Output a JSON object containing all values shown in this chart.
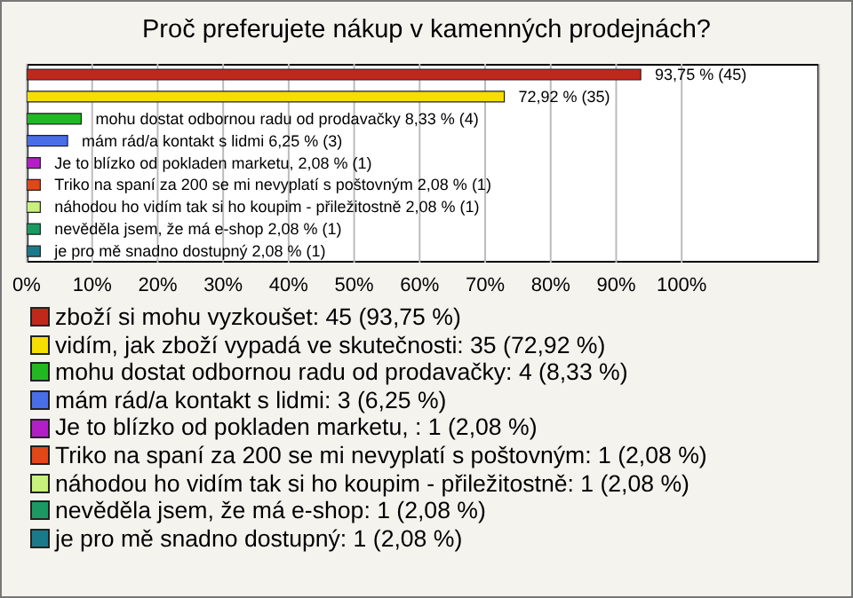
{
  "chart_data": {
    "type": "bar",
    "title": "Proč preferujete nákup v kamenných prodejnách?",
    "orientation": "horizontal",
    "stacked": true,
    "categories": [
      null,
      null,
      null,
      null,
      null,
      null,
      null,
      null,
      null
    ],
    "xlim": [
      0,
      121
    ],
    "xticks": [
      {
        "value": 0,
        "label": "0%"
      },
      {
        "value": 10,
        "label": "10%"
      },
      {
        "value": 20,
        "label": "20%"
      },
      {
        "value": 30,
        "label": "30%"
      },
      {
        "value": 40,
        "label": "40%"
      },
      {
        "value": 50,
        "label": "50%"
      },
      {
        "value": 60,
        "label": "60%"
      },
      {
        "value": 70,
        "label": "70%"
      },
      {
        "value": 80,
        "label": "80%"
      },
      {
        "value": 90,
        "label": "90%"
      },
      {
        "value": 100,
        "label": "100%"
      }
    ],
    "grid": "x",
    "legend": "bottom",
    "series": [
      {
        "name": "zboží si mohu vyzkoušet: 45 (93,75 %)",
        "color": "#c0281c",
        "values": [
          93.75,
          null,
          null,
          null,
          null,
          null,
          null,
          null,
          null
        ],
        "value_labels": [
          "93,75 % (45)",
          null,
          null,
          null,
          null,
          null,
          null,
          null,
          null
        ]
      },
      {
        "name": "vidím, jak zboží vypadá ve skutečnosti: 35 (72,92 %)",
        "color": "#f5de00",
        "values": [
          null,
          72.92,
          null,
          null,
          null,
          null,
          null,
          null,
          null
        ],
        "value_labels": [
          null,
          "72,92 % (35)",
          null,
          null,
          null,
          null,
          null,
          null,
          null
        ]
      },
      {
        "name": "mohu dostat odbornou radu od prodavačky: 4 (8,33 %)",
        "color": "#22b822",
        "values": [
          null,
          null,
          8.33,
          null,
          null,
          null,
          null,
          null,
          null
        ],
        "value_labels": [
          null,
          null,
          "mohu dostat odbornou radu od prodavačky 8,33 % (4)",
          null,
          null,
          null,
          null,
          null,
          null
        ]
      },
      {
        "name": "mám rád/a kontakt s lidmi: 3 (6,25 %)",
        "color": "#4a6ee8",
        "values": [
          null,
          null,
          null,
          6.25,
          null,
          null,
          null,
          null,
          null
        ],
        "value_labels": [
          null,
          null,
          null,
          "mám rád/a kontakt s lidmi 6,25 % (3)",
          null,
          null,
          null,
          null,
          null
        ]
      },
      {
        "name": "Je to blízko od pokladen marketu, : 1 (2,08 %)",
        "color": "#b41ec8",
        "values": [
          null,
          null,
          null,
          null,
          2.08,
          null,
          null,
          null,
          null
        ],
        "value_labels": [
          null,
          null,
          null,
          null,
          "Je to blízko od pokladen marketu,  2,08 % (1)",
          null,
          null,
          null,
          null
        ]
      },
      {
        "name": "Triko na spaní za 200 se mi nevyplatí s poštovným: 1 (2,08 %)",
        "color": "#e04818",
        "values": [
          null,
          null,
          null,
          null,
          null,
          2.08,
          null,
          null,
          null
        ],
        "value_labels": [
          null,
          null,
          null,
          null,
          null,
          "Triko na spaní za 200 se mi nevyplatí s poštovným 2,08 % (1)",
          null,
          null,
          null
        ]
      },
      {
        "name": "náhodou ho vidím tak si ho koupim - přiležitostně: 1 (2,08 %)",
        "color": "#c8f07c",
        "values": [
          null,
          null,
          null,
          null,
          null,
          null,
          2.08,
          null,
          null
        ],
        "value_labels": [
          null,
          null,
          null,
          null,
          null,
          null,
          "náhodou ho vidím tak si ho koupim - přiležitostně 2,08 % (1)",
          null,
          null
        ]
      },
      {
        "name": "nevěděla jsem, že má e-shop: 1 (2,08 %)",
        "color": "#1a9a62",
        "values": [
          null,
          null,
          null,
          null,
          null,
          null,
          null,
          2.08,
          null
        ],
        "value_labels": [
          null,
          null,
          null,
          null,
          null,
          null,
          null,
          "nevěděla jsem, že má e-shop 2,08 % (1)",
          null
        ]
      },
      {
        "name": "je pro mě snadno dostupný: 1 (2,08 %)",
        "color": "#1a7a8a",
        "values": [
          null,
          null,
          null,
          null,
          null,
          null,
          null,
          null,
          2.08
        ],
        "value_labels": [
          null,
          null,
          null,
          null,
          null,
          null,
          null,
          null,
          "je pro mě snadno dostupný 2,08 % (1)"
        ]
      }
    ]
  }
}
